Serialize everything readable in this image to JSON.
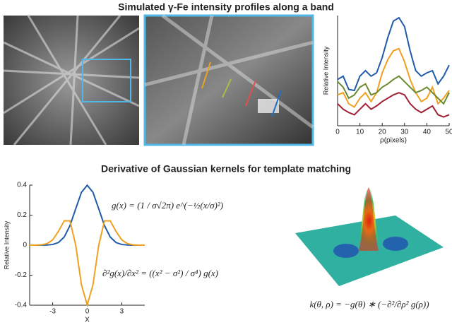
{
  "title_top": "Simulated γ-Fe intensity profiles along a band",
  "title_bottom": "Derivative of Gaussian kernels for template matching",
  "kernel_formula": "k(θ, ρ) = −g(θ) ∗ (−∂²/∂ρ² g(ρ))",
  "chart_data": [
    {
      "type": "line",
      "xlabel": "ρ(pixels)",
      "ylabel": "Relative Intensity",
      "x": [
        0,
        2.5,
        5,
        7.5,
        10,
        12.5,
        15,
        17.5,
        20,
        22.5,
        25,
        27.5,
        30,
        32.5,
        35,
        37.5,
        40,
        42.5,
        45,
        47.5,
        50
      ],
      "xlim": [
        0,
        50
      ],
      "xticks": [
        0,
        10,
        20,
        30,
        40,
        50
      ],
      "ylim": [
        0,
        1
      ],
      "series": [
        {
          "color": "#1f5ba8",
          "values": [
            0.42,
            0.45,
            0.33,
            0.32,
            0.45,
            0.5,
            0.45,
            0.48,
            0.62,
            0.8,
            0.95,
            0.98,
            0.9,
            0.68,
            0.5,
            0.45,
            0.48,
            0.5,
            0.38,
            0.45,
            0.55
          ]
        },
        {
          "color": "#f0a020",
          "values": [
            0.28,
            0.3,
            0.2,
            0.17,
            0.25,
            0.3,
            0.22,
            0.3,
            0.48,
            0.6,
            0.68,
            0.7,
            0.58,
            0.42,
            0.3,
            0.22,
            0.25,
            0.35,
            0.2,
            0.25,
            0.32
          ]
        },
        {
          "color": "#6a8a30",
          "values": [
            0.4,
            0.35,
            0.25,
            0.28,
            0.35,
            0.38,
            0.28,
            0.3,
            0.35,
            0.38,
            0.42,
            0.45,
            0.4,
            0.35,
            0.3,
            0.32,
            0.35,
            0.3,
            0.25,
            0.2,
            0.3
          ]
        },
        {
          "color": "#a02035",
          "values": [
            0.2,
            0.15,
            0.12,
            0.1,
            0.15,
            0.2,
            0.15,
            0.18,
            0.22,
            0.25,
            0.28,
            0.3,
            0.28,
            0.2,
            0.15,
            0.12,
            0.15,
            0.18,
            0.1,
            0.08,
            0.1
          ]
        }
      ]
    },
    {
      "type": "line",
      "xlabel": "X",
      "ylabel": "Relative Intensity",
      "x": [
        -5,
        -4.5,
        -4,
        -3.5,
        -3,
        -2.5,
        -2,
        -1.5,
        -1,
        -0.5,
        0,
        0.5,
        1,
        1.5,
        2,
        2.5,
        3,
        3.5,
        4,
        4.5,
        5
      ],
      "xlim": [
        -5,
        5
      ],
      "xticks": [
        -3,
        0,
        3
      ],
      "ylim": [
        -0.4,
        0.4
      ],
      "yticks": [
        -0.4,
        -0.2,
        0,
        0.2,
        0.4
      ],
      "series": [
        {
          "color": "#1f5ba8",
          "values": [
            0,
            0,
            0.0001,
            0.0009,
            0.0044,
            0.0175,
            0.054,
            0.13,
            0.242,
            0.352,
            0.399,
            0.352,
            0.242,
            0.13,
            0.054,
            0.0175,
            0.0044,
            0.0009,
            0.0001,
            0,
            0
          ]
        },
        {
          "color": "#f0a020",
          "values": [
            0,
            0,
            0.002,
            0.01,
            0.035,
            0.092,
            0.162,
            0.162,
            0,
            -0.264,
            -0.399,
            -0.264,
            0,
            0.162,
            0.162,
            0.092,
            0.035,
            0.01,
            0.002,
            0,
            0
          ]
        }
      ],
      "annotations": [
        {
          "text": "g(x) = (1 / σ√2π) e^(−½(x/σ)²)",
          "color": "#1f5ba8"
        },
        {
          "text": "∂²g(x)/∂x² = ((x² − σ²) / σ⁴) g(x)",
          "color": "#f0a020"
        }
      ]
    }
  ]
}
